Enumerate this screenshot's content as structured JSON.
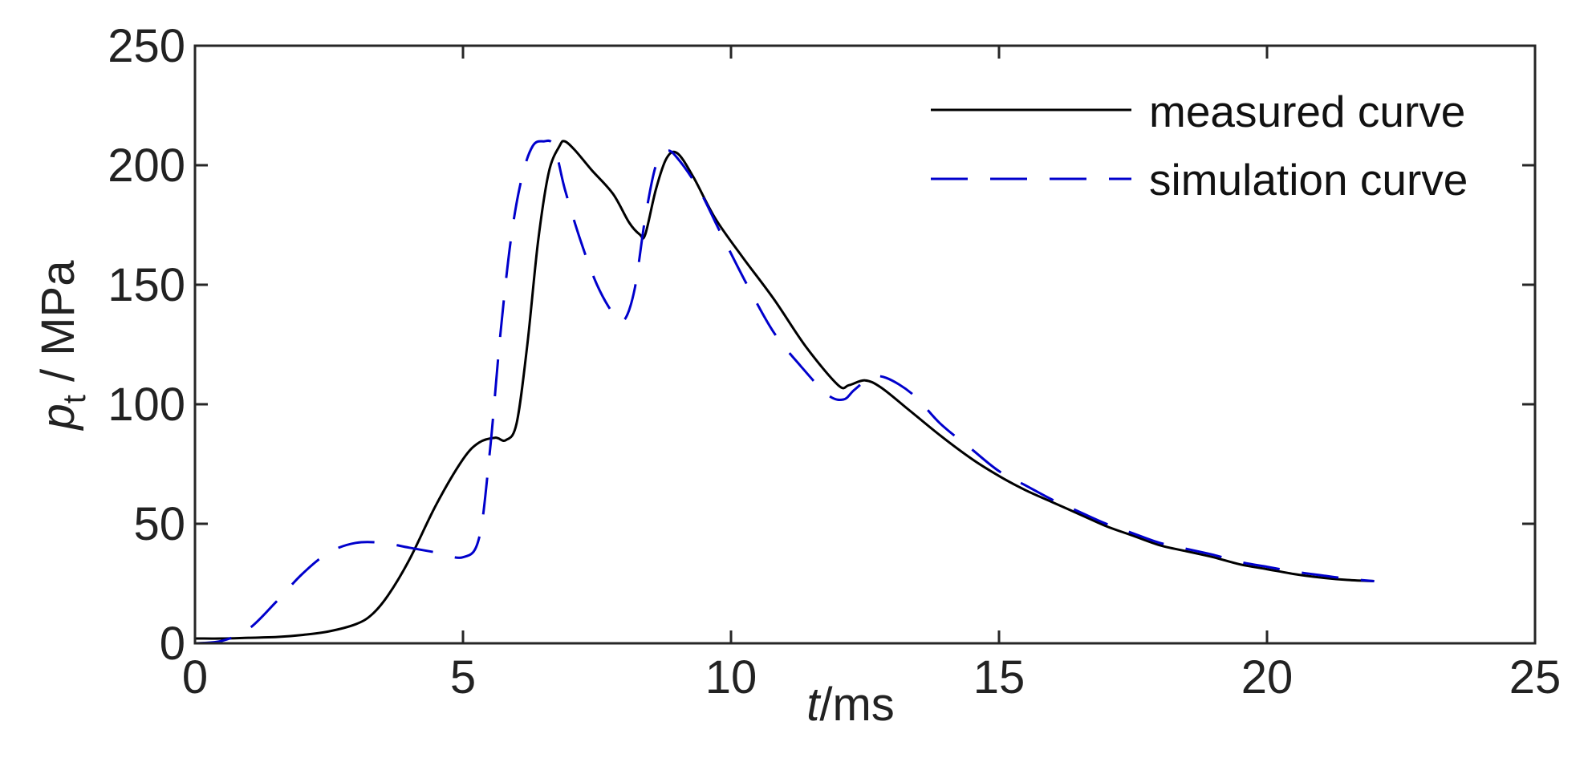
{
  "chart_data": {
    "type": "line",
    "title": "",
    "xlabel": {
      "italic": "t",
      "rest": "/ms"
    },
    "ylabel": {
      "italic": "p",
      "sub": "t",
      "rest": " / MPa"
    },
    "xlim": [
      0,
      25
    ],
    "ylim": [
      0,
      250
    ],
    "xticks": [
      0,
      5,
      10,
      15,
      20,
      25
    ],
    "yticks": [
      0,
      50,
      100,
      150,
      200,
      250
    ],
    "xtick_labels": [
      "0",
      "5",
      "10",
      "15",
      "20",
      "25"
    ],
    "ytick_labels": [
      "0",
      "50",
      "100",
      "150",
      "200",
      "250"
    ],
    "grid": false,
    "legend_position": "top-right",
    "series": [
      {
        "name": "measured curve",
        "color": "#000000",
        "dash": "solid",
        "points": [
          [
            0,
            2
          ],
          [
            0.5,
            2
          ],
          [
            1.0,
            2.3
          ],
          [
            1.5,
            2.6
          ],
          [
            2.0,
            3.5
          ],
          [
            2.5,
            5
          ],
          [
            3.0,
            8
          ],
          [
            3.3,
            12
          ],
          [
            3.6,
            20
          ],
          [
            4.0,
            35
          ],
          [
            4.5,
            58
          ],
          [
            5.0,
            77
          ],
          [
            5.3,
            84
          ],
          [
            5.6,
            86
          ],
          [
            5.8,
            85
          ],
          [
            6.0,
            92
          ],
          [
            6.2,
            125
          ],
          [
            6.4,
            168
          ],
          [
            6.6,
            197
          ],
          [
            6.8,
            208
          ],
          [
            6.9,
            210
          ],
          [
            7.1,
            206
          ],
          [
            7.4,
            198
          ],
          [
            7.8,
            188
          ],
          [
            8.1,
            176
          ],
          [
            8.3,
            171
          ],
          [
            8.4,
            171
          ],
          [
            8.6,
            190
          ],
          [
            8.8,
            203
          ],
          [
            9.0,
            205
          ],
          [
            9.3,
            195
          ],
          [
            9.7,
            178
          ],
          [
            10.2,
            162
          ],
          [
            10.8,
            144
          ],
          [
            11.4,
            124
          ],
          [
            12.0,
            108
          ],
          [
            12.2,
            108
          ],
          [
            12.5,
            110
          ],
          [
            12.8,
            107
          ],
          [
            13.3,
            98
          ],
          [
            13.9,
            87
          ],
          [
            14.5,
            77
          ],
          [
            15.0,
            70
          ],
          [
            15.5,
            64
          ],
          [
            16.0,
            59
          ],
          [
            16.5,
            54
          ],
          [
            17.0,
            49
          ],
          [
            17.5,
            45
          ],
          [
            18.0,
            41
          ],
          [
            18.5,
            38.5
          ],
          [
            19.0,
            36
          ],
          [
            19.5,
            33
          ],
          [
            20.0,
            31
          ],
          [
            20.5,
            29
          ],
          [
            21.0,
            27.5
          ],
          [
            21.5,
            26.5
          ],
          [
            22.0,
            26
          ]
        ]
      },
      {
        "name": "simulation curve",
        "color": "#0000cc",
        "dash": "dashed",
        "points": [
          [
            0,
            0
          ],
          [
            0.5,
            1
          ],
          [
            1.0,
            6
          ],
          [
            1.5,
            17
          ],
          [
            2.0,
            29
          ],
          [
            2.5,
            38
          ],
          [
            3.0,
            42
          ],
          [
            3.5,
            42
          ],
          [
            4.0,
            40
          ],
          [
            4.5,
            38
          ],
          [
            5.0,
            36
          ],
          [
            5.3,
            44
          ],
          [
            5.5,
            80
          ],
          [
            5.7,
            130
          ],
          [
            5.9,
            170
          ],
          [
            6.1,
            195
          ],
          [
            6.3,
            208
          ],
          [
            6.5,
            210
          ],
          [
            6.7,
            208
          ],
          [
            6.9,
            190
          ],
          [
            7.2,
            168
          ],
          [
            7.5,
            150
          ],
          [
            7.8,
            138
          ],
          [
            8.0,
            135
          ],
          [
            8.2,
            148
          ],
          [
            8.4,
            178
          ],
          [
            8.6,
            200
          ],
          [
            8.8,
            206
          ],
          [
            9.0,
            203
          ],
          [
            9.4,
            190
          ],
          [
            9.8,
            172
          ],
          [
            10.3,
            150
          ],
          [
            10.8,
            130
          ],
          [
            11.3,
            116
          ],
          [
            11.8,
            104
          ],
          [
            12.1,
            102
          ],
          [
            12.3,
            106
          ],
          [
            12.6,
            111
          ],
          [
            12.9,
            111
          ],
          [
            13.4,
            104
          ],
          [
            13.9,
            92
          ],
          [
            14.5,
            81
          ],
          [
            15.0,
            72
          ],
          [
            15.5,
            66
          ],
          [
            16.0,
            60
          ],
          [
            16.5,
            55
          ],
          [
            17.0,
            50
          ],
          [
            17.5,
            46
          ],
          [
            18.0,
            42
          ],
          [
            18.5,
            39.5
          ],
          [
            19.0,
            37
          ],
          [
            19.5,
            34
          ],
          [
            20.0,
            32
          ],
          [
            20.5,
            30
          ],
          [
            21.0,
            28.5
          ],
          [
            21.5,
            27
          ],
          [
            22.0,
            26
          ]
        ]
      }
    ]
  }
}
